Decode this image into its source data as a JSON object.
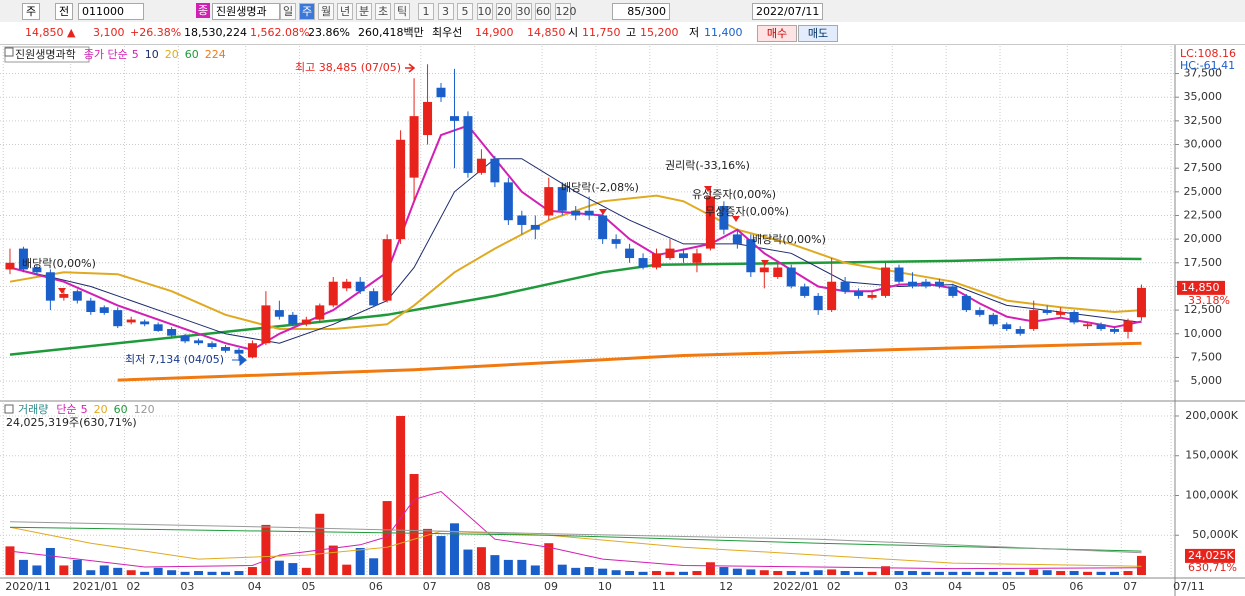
{
  "toolbar": {
    "period_select": "주",
    "prev": "전",
    "code": "011000",
    "badge": "종",
    "name": "진원생명과",
    "periods": [
      "일",
      "주",
      "월",
      "년",
      "분",
      "초",
      "틱"
    ],
    "intervals": [
      "1",
      "3",
      "5",
      "10",
      "20",
      "30",
      "60",
      "120"
    ],
    "count": "85/300",
    "date": "2022/07/11"
  },
  "quote": {
    "price": "14,850 ▲",
    "change": "3,100",
    "change_pct": "+26.38%",
    "volume": "18,530,224",
    "volume_pct": "1,562.08%",
    "turnover": "23.86%",
    "amount": "260,418백만",
    "best_label": "최우선",
    "ask": "14,900",
    "bid": "14,850",
    "open_label": "시",
    "open": "11,750",
    "high_label": "고",
    "high": "15,200",
    "low_label": "저",
    "low": "11,400",
    "buy": "매수",
    "sell": "매도"
  },
  "chart_data": [
    {
      "type": "candlestick",
      "title": "진원생명과학",
      "legend_label": "종가 단순",
      "lc": "LC:108.16",
      "hc": "HC:-61.41",
      "up_color": "#e8231c",
      "down_color": "#1a5fc9",
      "grid": true,
      "xlim": [
        -0.74,
        86.49
      ],
      "xticks": [
        {
          "value": -0.5,
          "label": "2020/11"
        },
        {
          "value": 4.5,
          "label": "2021/01"
        },
        {
          "value": 8.5,
          "label": "02"
        },
        {
          "value": 12.5,
          "label": "03"
        },
        {
          "value": 17.5,
          "label": "04"
        },
        {
          "value": 21.5,
          "label": "05"
        },
        {
          "value": 26.5,
          "label": "06"
        },
        {
          "value": 30.5,
          "label": "07"
        },
        {
          "value": 34.5,
          "label": "08"
        },
        {
          "value": 39.5,
          "label": "09"
        },
        {
          "value": 43.5,
          "label": "10"
        },
        {
          "value": 47.5,
          "label": "11"
        },
        {
          "value": 52.5,
          "label": "12"
        },
        {
          "value": 56.5,
          "label": "2022/01"
        },
        {
          "value": 60.5,
          "label": "02"
        },
        {
          "value": 65.5,
          "label": "03"
        },
        {
          "value": 69.5,
          "label": "04"
        },
        {
          "value": 73.5,
          "label": "05"
        },
        {
          "value": 78.5,
          "label": "06"
        },
        {
          "value": 82.5,
          "label": "07"
        },
        {
          "value": 86.2,
          "label": "07/11"
        }
      ],
      "ylim": [
        3000,
        40200
      ],
      "yticks": [
        {
          "value": 5000,
          "label": "5,000"
        },
        {
          "value": 7500,
          "label": "7,500"
        },
        {
          "value": 10000,
          "label": "10,000"
        },
        {
          "value": 12500,
          "label": "12,500"
        },
        {
          "value": 15000,
          "label": "15,000"
        },
        {
          "value": 17500,
          "label": "17,500"
        },
        {
          "value": 20000,
          "label": "20,000"
        },
        {
          "value": 22500,
          "label": "22,500"
        },
        {
          "value": 25000,
          "label": "25,000"
        },
        {
          "value": 27500,
          "label": "27,500"
        },
        {
          "value": 30000,
          "label": "30,000"
        },
        {
          "value": 32500,
          "label": "32,500"
        },
        {
          "value": 35000,
          "label": "35,000"
        },
        {
          "value": 37500,
          "label": "37,500"
        }
      ],
      "ohlc": [
        [
          16800,
          19000,
          16300,
          17500
        ],
        [
          19000,
          19200,
          16500,
          16800
        ],
        [
          17000,
          17300,
          16200,
          16500
        ],
        [
          16500,
          16800,
          12500,
          13500
        ],
        [
          13800,
          14600,
          13500,
          14200
        ],
        [
          14500,
          14700,
          13200,
          13500
        ],
        [
          13500,
          13800,
          12000,
          12300
        ],
        [
          12800,
          13000,
          12000,
          12200
        ],
        [
          12500,
          12800,
          10600,
          10800
        ],
        [
          11200,
          11800,
          11000,
          11500
        ],
        [
          11300,
          11500,
          10800,
          11000
        ],
        [
          11000,
          11200,
          10200,
          10300
        ],
        [
          10500,
          10700,
          9600,
          9800
        ],
        [
          9800,
          10000,
          9000,
          9200
        ],
        [
          9300,
          9500,
          8800,
          9000
        ],
        [
          9000,
          9200,
          8400,
          8600
        ],
        [
          8600,
          8800,
          8000,
          8200
        ],
        [
          8300,
          8500,
          7134,
          7900
        ],
        [
          7500,
          9300,
          7400,
          9000
        ],
        [
          9000,
          14500,
          8800,
          13000
        ],
        [
          12500,
          13500,
          11500,
          11800
        ],
        [
          12000,
          12300,
          10800,
          11000
        ],
        [
          11000,
          11800,
          10800,
          11500
        ],
        [
          11500,
          13200,
          11200,
          13000
        ],
        [
          13000,
          16000,
          12800,
          15500
        ],
        [
          14800,
          15800,
          14500,
          15500
        ],
        [
          15500,
          16000,
          14200,
          14500
        ],
        [
          14500,
          14800,
          12800,
          13000
        ],
        [
          13500,
          20500,
          13300,
          20000
        ],
        [
          20000,
          31500,
          19500,
          30500
        ],
        [
          26500,
          37000,
          24000,
          33000
        ],
        [
          31000,
          38485,
          30000,
          34500
        ],
        [
          36000,
          36500,
          34500,
          35000
        ],
        [
          33000,
          38000,
          27500,
          32500
        ],
        [
          33000,
          33500,
          26500,
          27000
        ],
        [
          27000,
          29500,
          26800,
          28500
        ],
        [
          28500,
          28800,
          25500,
          26000
        ],
        [
          26000,
          26500,
          21500,
          22000
        ],
        [
          22500,
          23000,
          20500,
          21500
        ],
        [
          21500,
          22500,
          20000,
          21000
        ],
        [
          22500,
          26500,
          22000,
          25500
        ],
        [
          25500,
          26000,
          22500,
          23000
        ],
        [
          23000,
          23500,
          22000,
          22500
        ],
        [
          23000,
          24500,
          22000,
          22500
        ],
        [
          22500,
          23000,
          19500,
          20000
        ],
        [
          20000,
          20500,
          19000,
          19500
        ],
        [
          19000,
          19500,
          17500,
          18000
        ],
        [
          18000,
          18500,
          16800,
          17000
        ],
        [
          17000,
          19000,
          16800,
          18500
        ],
        [
          18000,
          20000,
          17800,
          19000
        ],
        [
          18500,
          19000,
          17500,
          18000
        ],
        [
          17500,
          19000,
          16500,
          18500
        ],
        [
          19000,
          25500,
          18800,
          24500
        ],
        [
          23500,
          24000,
          20500,
          21000
        ],
        [
          20500,
          21000,
          19000,
          19500
        ],
        [
          20000,
          20500,
          16000,
          16500
        ],
        [
          16500,
          17800,
          14800,
          17000
        ],
        [
          16000,
          17500,
          15800,
          17000
        ],
        [
          17000,
          17300,
          14800,
          15000
        ],
        [
          15000,
          15300,
          13800,
          14000
        ],
        [
          14000,
          14300,
          12000,
          12500
        ],
        [
          12500,
          18000,
          12300,
          15500
        ],
        [
          15500,
          16000,
          14200,
          14500
        ],
        [
          14500,
          14800,
          13700,
          14000
        ],
        [
          13800,
          14500,
          13600,
          14100
        ],
        [
          14000,
          17500,
          13800,
          17000
        ],
        [
          17000,
          17300,
          15300,
          15500
        ],
        [
          15500,
          16500,
          14800,
          15000
        ],
        [
          15500,
          15800,
          14800,
          15000
        ],
        [
          15500,
          15800,
          14800,
          15000
        ],
        [
          15000,
          15300,
          13800,
          14000
        ],
        [
          14000,
          14200,
          12300,
          12500
        ],
        [
          12500,
          12800,
          11800,
          12000
        ],
        [
          12000,
          12200,
          10800,
          11000
        ],
        [
          11000,
          11200,
          10300,
          10500
        ],
        [
          10500,
          10800,
          9800,
          10000
        ],
        [
          10500,
          13500,
          10300,
          12500
        ],
        [
          12500,
          13000,
          12000,
          12200
        ],
        [
          12000,
          12800,
          11800,
          12300
        ],
        [
          12300,
          12500,
          11000,
          11200
        ],
        [
          10800,
          11300,
          10500,
          11000
        ],
        [
          11000,
          11200,
          10300,
          10500
        ],
        [
          10500,
          10700,
          10000,
          10200
        ],
        [
          10200,
          11600,
          9500,
          11400
        ],
        [
          11750,
          15200,
          11400,
          14850
        ]
      ],
      "series": [
        {
          "name": "224",
          "color": "#f07a10",
          "x": [
            8,
            30,
            50,
            70,
            84
          ],
          "values": [
            5100,
            6200,
            7700,
            8500,
            9000
          ]
        },
        {
          "name": "60",
          "color": "#1f9a3a",
          "x": [
            0,
            18,
            28,
            36,
            44,
            48,
            60,
            70,
            78,
            84
          ],
          "values": [
            7800,
            10500,
            12000,
            14000,
            16500,
            17300,
            17500,
            17700,
            18000,
            17900
          ]
        },
        {
          "name": "20",
          "color": "#e0aa20",
          "x": [
            0,
            4,
            8,
            12,
            16,
            20,
            24,
            28,
            30,
            33,
            36,
            40,
            44,
            48,
            50,
            54,
            58,
            62,
            66,
            70,
            74,
            78,
            82,
            84
          ],
          "values": [
            15500,
            16500,
            16300,
            14500,
            12000,
            10500,
            10500,
            11000,
            13000,
            16500,
            19000,
            22000,
            24000,
            24600,
            24000,
            21000,
            19500,
            17500,
            16500,
            15500,
            13500,
            12800,
            12300,
            12500
          ]
        },
        {
          "name": "10",
          "color": "#1c2a6b",
          "x": [
            0,
            6,
            12,
            16,
            20,
            24,
            28,
            30,
            33,
            36,
            38,
            42,
            46,
            50,
            54,
            58,
            62,
            66,
            70,
            74,
            78,
            84
          ],
          "values": [
            17000,
            15000,
            12000,
            10000,
            9000,
            11000,
            13500,
            17000,
            25000,
            28500,
            28500,
            25000,
            22000,
            19500,
            19500,
            18500,
            15500,
            15000,
            15200,
            13000,
            12300,
            11200
          ]
        },
        {
          "name": "5",
          "color": "#d21fb4",
          "x": [
            0,
            4,
            8,
            12,
            16,
            18,
            20,
            24,
            28,
            30,
            32,
            34,
            36,
            38,
            40,
            44,
            46,
            48,
            52,
            54,
            56,
            60,
            62,
            64,
            66,
            68,
            70,
            72,
            74,
            76,
            78,
            80,
            82,
            84
          ],
          "values": [
            17000,
            15500,
            13000,
            11000,
            9000,
            8300,
            10000,
            12500,
            16500,
            24000,
            31000,
            32000,
            28500,
            25000,
            23000,
            22500,
            20000,
            18300,
            19500,
            21000,
            18500,
            15000,
            14500,
            14500,
            15200,
            15300,
            14800,
            13200,
            11800,
            11300,
            11700,
            11200,
            10700,
            11300
          ]
        }
      ],
      "annotations": [
        "최고 38,485 (07/05)",
        "최저 7,134 (04/05)",
        "배당락(0,00%)",
        "권리락(-33,16%)",
        "유상증자(0,00%)",
        "무상증자(0,00%)",
        "배당락(0,00%)",
        "배당락(-2,08%)"
      ],
      "last": {
        "value": 14850,
        "label": "14,850",
        "change": "33.18%"
      }
    },
    {
      "type": "bar",
      "title": "거래량",
      "legend_label": "단순",
      "info": "24,025,319주(630,71%)",
      "ylim": [
        0,
        205000
      ],
      "yticks": [
        {
          "value": 50000,
          "label": "50,000K"
        },
        {
          "value": 100000,
          "label": "100,000K"
        },
        {
          "value": 150000,
          "label": "150,000K"
        },
        {
          "value": 200000,
          "label": "200,000K"
        }
      ],
      "values": [
        36000,
        19000,
        12000,
        34000,
        12000,
        19000,
        6000,
        12000,
        9000,
        6000,
        4000,
        9000,
        6000,
        4000,
        5000,
        4000,
        4000,
        5000,
        10000,
        63000,
        18000,
        15000,
        9000,
        77000,
        37000,
        13000,
        34000,
        21000,
        93000,
        200000,
        127000,
        58000,
        49000,
        65000,
        32000,
        35000,
        25000,
        19000,
        19000,
        12000,
        40000,
        13000,
        9000,
        10000,
        8000,
        6000,
        5000,
        4000,
        5000,
        4000,
        4000,
        5000,
        16000,
        10000,
        8000,
        7000,
        6000,
        5000,
        5000,
        4000,
        6000,
        7000,
        5000,
        4000,
        4000,
        11000,
        5000,
        5000,
        4000,
        4000,
        4000,
        4000,
        4000,
        4000,
        4000,
        4000,
        7000,
        6000,
        5000,
        5000,
        4000,
        4000,
        4000,
        5000,
        24025.319
      ],
      "series": [
        {
          "name": "5",
          "color": "#d21fb4",
          "x": [
            0,
            10,
            18,
            20,
            26,
            28,
            30,
            32,
            34,
            36,
            40,
            44,
            50,
            60,
            70,
            84
          ],
          "values": [
            30000,
            10000,
            12000,
            25000,
            38000,
            48000,
            95000,
            105000,
            75000,
            45000,
            35000,
            20000,
            12000,
            10000,
            8000,
            9000
          ]
        },
        {
          "name": "20",
          "color": "#e0aa20",
          "x": [
            0,
            6,
            14,
            22,
            28,
            32,
            40,
            50,
            60,
            70,
            84
          ],
          "values": [
            60000,
            40000,
            20000,
            25000,
            35000,
            55000,
            50000,
            35000,
            25000,
            15000,
            11000
          ]
        },
        {
          "name": "60",
          "color": "#1f9a3a",
          "x": [
            0,
            20,
            40,
            60,
            84
          ],
          "values": [
            60000,
            55000,
            50000,
            40000,
            30000
          ]
        },
        {
          "name": "120",
          "color": "#999999",
          "x": [
            0,
            20,
            40,
            60,
            84
          ],
          "values": [
            67000,
            60000,
            52000,
            45000,
            28000
          ]
        }
      ],
      "last": {
        "value": 24025.319,
        "label": "24,025K",
        "change": "630,71%"
      }
    }
  ]
}
